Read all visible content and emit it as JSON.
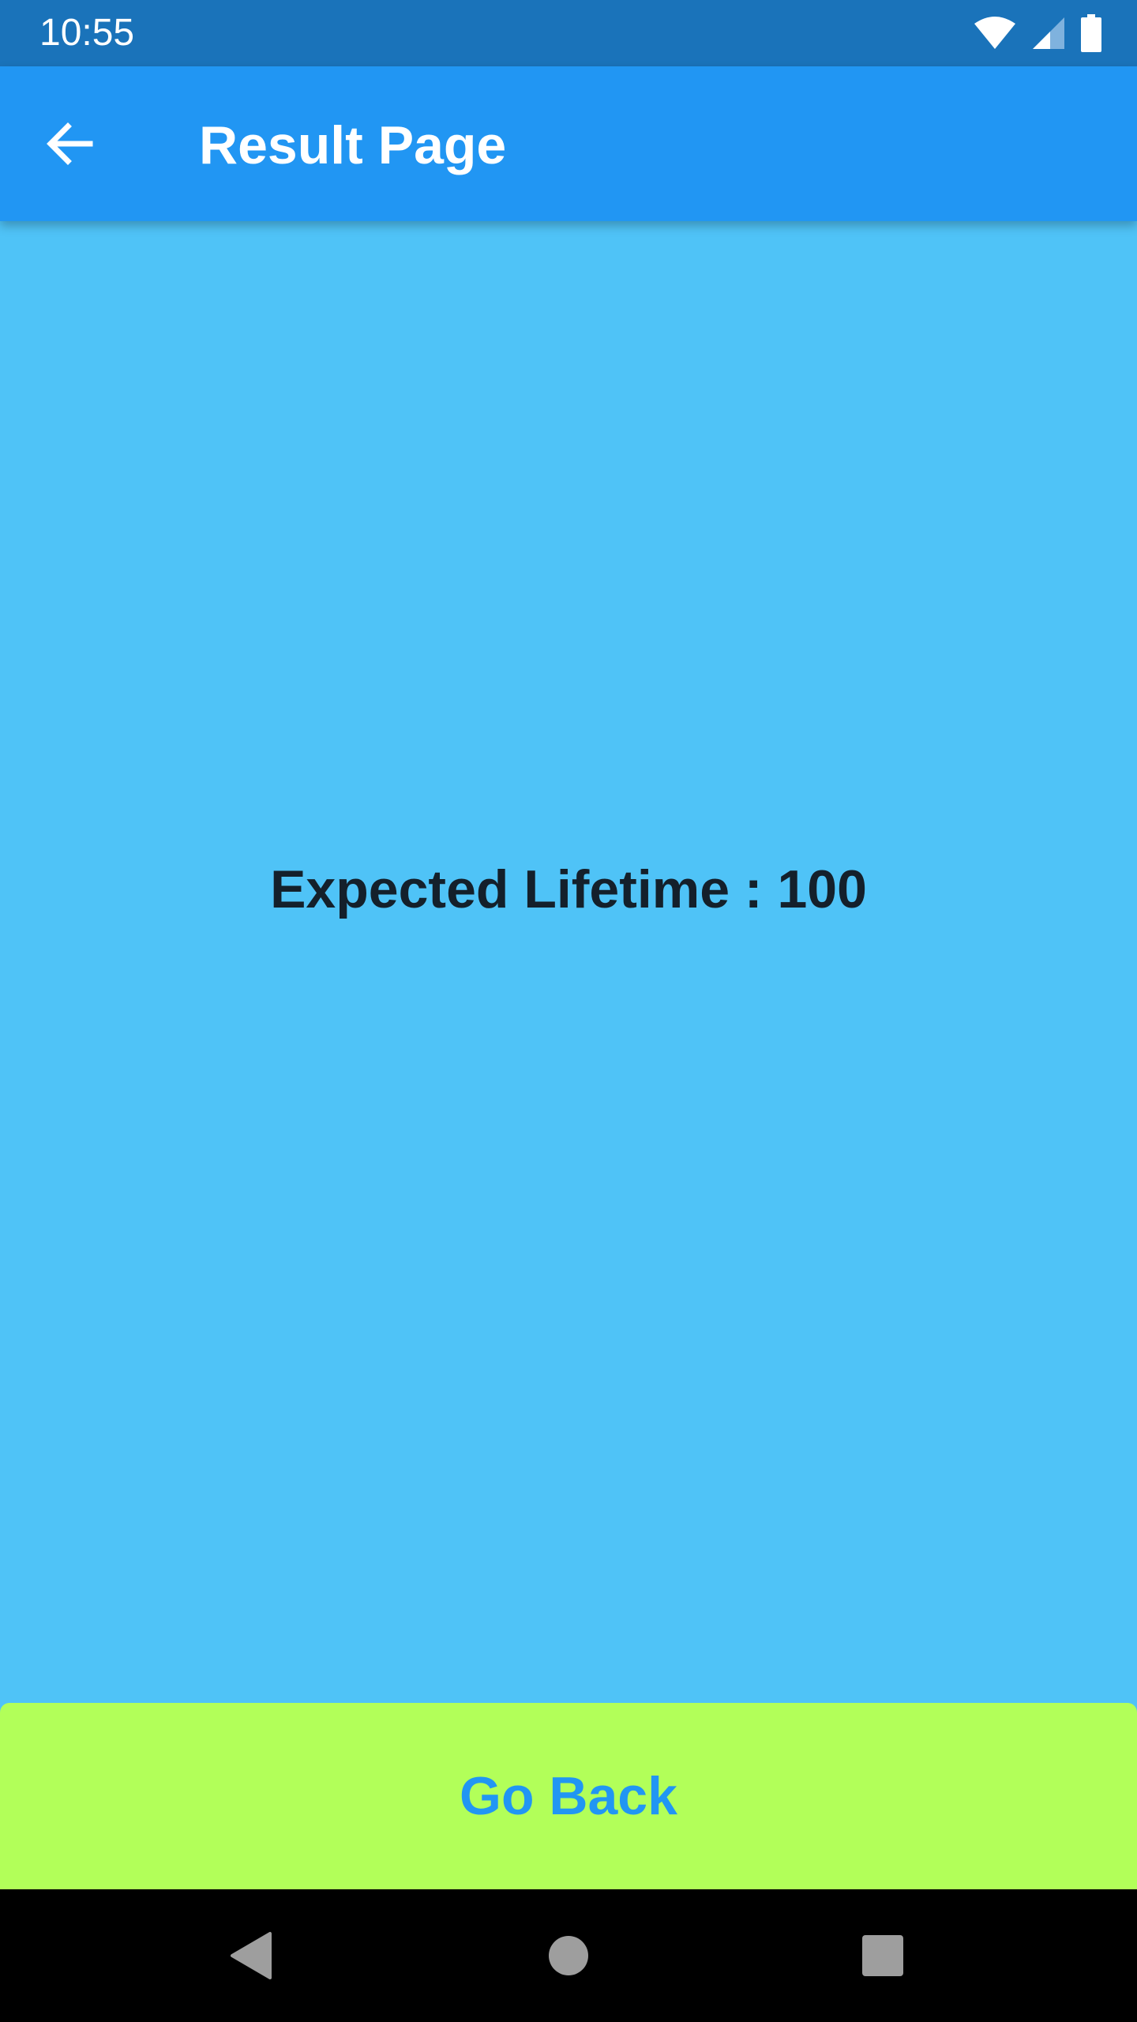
{
  "status_bar": {
    "time": "10:55",
    "icons": [
      "wifi-icon",
      "cell-signal-icon",
      "battery-icon"
    ]
  },
  "app_bar": {
    "back_icon": "arrow-left-icon",
    "title": "Result Page"
  },
  "content": {
    "result_text": "Expected Lifetime : 100"
  },
  "footer": {
    "go_back_label": "Go Back"
  },
  "nav_bar": {
    "buttons": [
      "nav-back-icon",
      "nav-home-icon",
      "nav-recents-icon"
    ]
  },
  "colors": {
    "status_bar": "#1A73BA",
    "app_bar": "#2196F3",
    "background": "#4FC3F7",
    "button": "#B2FF59",
    "button_text": "#2196F3",
    "result_text": "#14202B",
    "nav_bar": "#000000"
  }
}
